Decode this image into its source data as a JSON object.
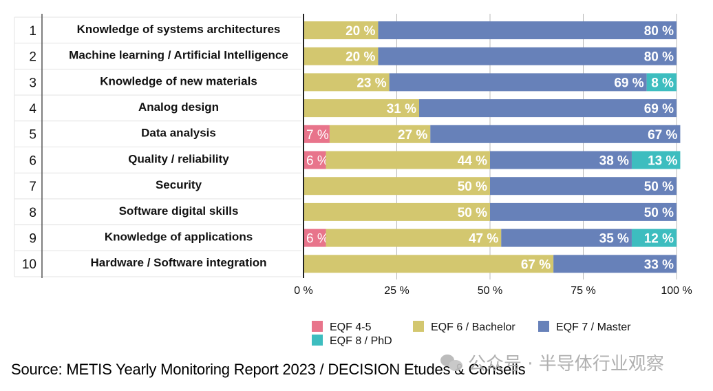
{
  "chart_data": {
    "type": "bar",
    "orientation": "horizontal",
    "stacked": true,
    "title": "",
    "xlabel": "",
    "ylabel": "",
    "xlim": [
      0,
      100
    ],
    "x_ticks": [
      "0 %",
      "25 %",
      "50 %",
      "75 %",
      "100 %"
    ],
    "x_tick_values": [
      0,
      25,
      50,
      75,
      100
    ],
    "grid": true,
    "legend_position": "bottom",
    "value_suffix": " %",
    "ranks": [
      "1",
      "2",
      "3",
      "4",
      "5",
      "6",
      "7",
      "8",
      "9",
      "10"
    ],
    "categories": [
      "Knowledge of systems architectures",
      "Machine learning / Artificial Intelligence",
      "Knowledge of new materials",
      "Analog design",
      "Data analysis",
      "Quality / reliability",
      "Security",
      "Software digital skills",
      "Knowledge of applications",
      "Hardware / Software integration"
    ],
    "series": [
      {
        "name": "EQF 4-5",
        "color": "#e8748b",
        "values": [
          0,
          0,
          0,
          0,
          7,
          6,
          0,
          0,
          6,
          0
        ]
      },
      {
        "name": "EQF 6 / Bachelor",
        "color": "#d3c76f",
        "values": [
          20,
          20,
          23,
          31,
          27,
          44,
          50,
          50,
          47,
          67
        ]
      },
      {
        "name": "EQF 7 / Master",
        "color": "#6781b9",
        "values": [
          80,
          80,
          69,
          69,
          67,
          38,
          50,
          50,
          35,
          33
        ]
      },
      {
        "name": "EQF 8 / PhD",
        "color": "#3dbdbf",
        "values": [
          0,
          0,
          8,
          0,
          0,
          13,
          0,
          0,
          12,
          0
        ]
      }
    ]
  },
  "footer": {
    "source": "Source: METIS Yearly Monitoring Report 2023 / DECISION Etudes & Conseils",
    "watermark": "公众号 · 半导体行业观察"
  }
}
